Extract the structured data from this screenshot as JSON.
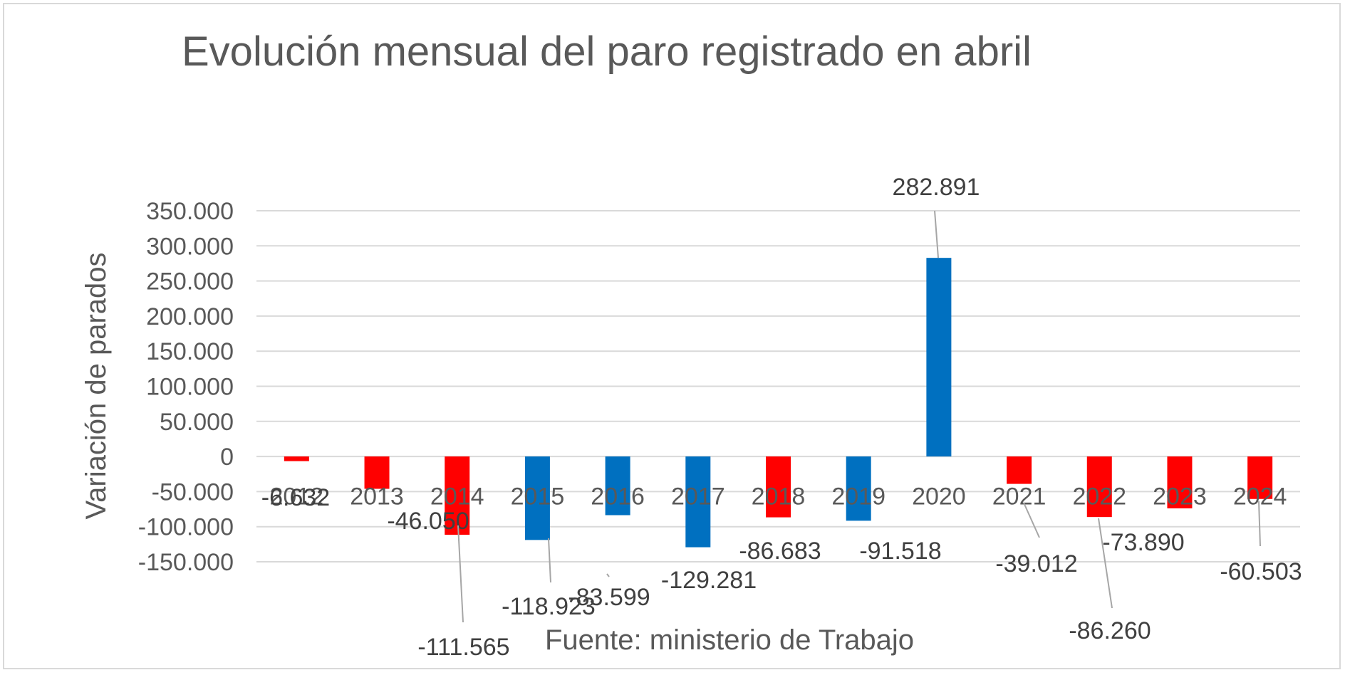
{
  "chart_data": {
    "type": "bar",
    "title": "Evolución mensual del paro registrado en abril",
    "xlabel": "",
    "ylabel": "Variación de parados",
    "source": "Fuente: ministerio de Trabajo",
    "categories": [
      "2012",
      "2013",
      "2014",
      "2015",
      "2016",
      "2017",
      "2018",
      "2019",
      "2020",
      "2021",
      "2022",
      "2023",
      "2024"
    ],
    "values": [
      -6632,
      -46050,
      -111565,
      -118923,
      -83599,
      -129281,
      -86683,
      -91518,
      282891,
      -39012,
      -86260,
      -73890,
      -60503
    ],
    "labels": [
      "-6.632",
      "-46.050",
      "-111.565",
      "-118.923",
      "-83.599",
      "-129.281",
      "-86.683",
      "-91.518",
      "282.891",
      "-39.012",
      "-86.260",
      "-73.890",
      "-60.503"
    ],
    "colors": [
      "#ff0000",
      "#ff0000",
      "#ff0000",
      "#0070c0",
      "#0070c0",
      "#0070c0",
      "#ff0000",
      "#0070c0",
      "#0070c0",
      "#ff0000",
      "#ff0000",
      "#ff0000",
      "#ff0000"
    ],
    "ylim": [
      -150000,
      350000
    ],
    "ytick_values": [
      350000,
      300000,
      250000,
      200000,
      150000,
      100000,
      50000,
      0,
      -50000,
      -100000,
      -150000
    ],
    "ytick_labels": [
      "350.000",
      "300.000",
      "250.000",
      "200.000",
      "150.000",
      "100.000",
      "50.000",
      "0",
      "-50.000",
      "-100.000",
      "-150.000"
    ],
    "grid": true,
    "gridline_color": "#d9d9d9",
    "border_color": "#d9d9d9",
    "leader_color": "#a6a6a6"
  }
}
